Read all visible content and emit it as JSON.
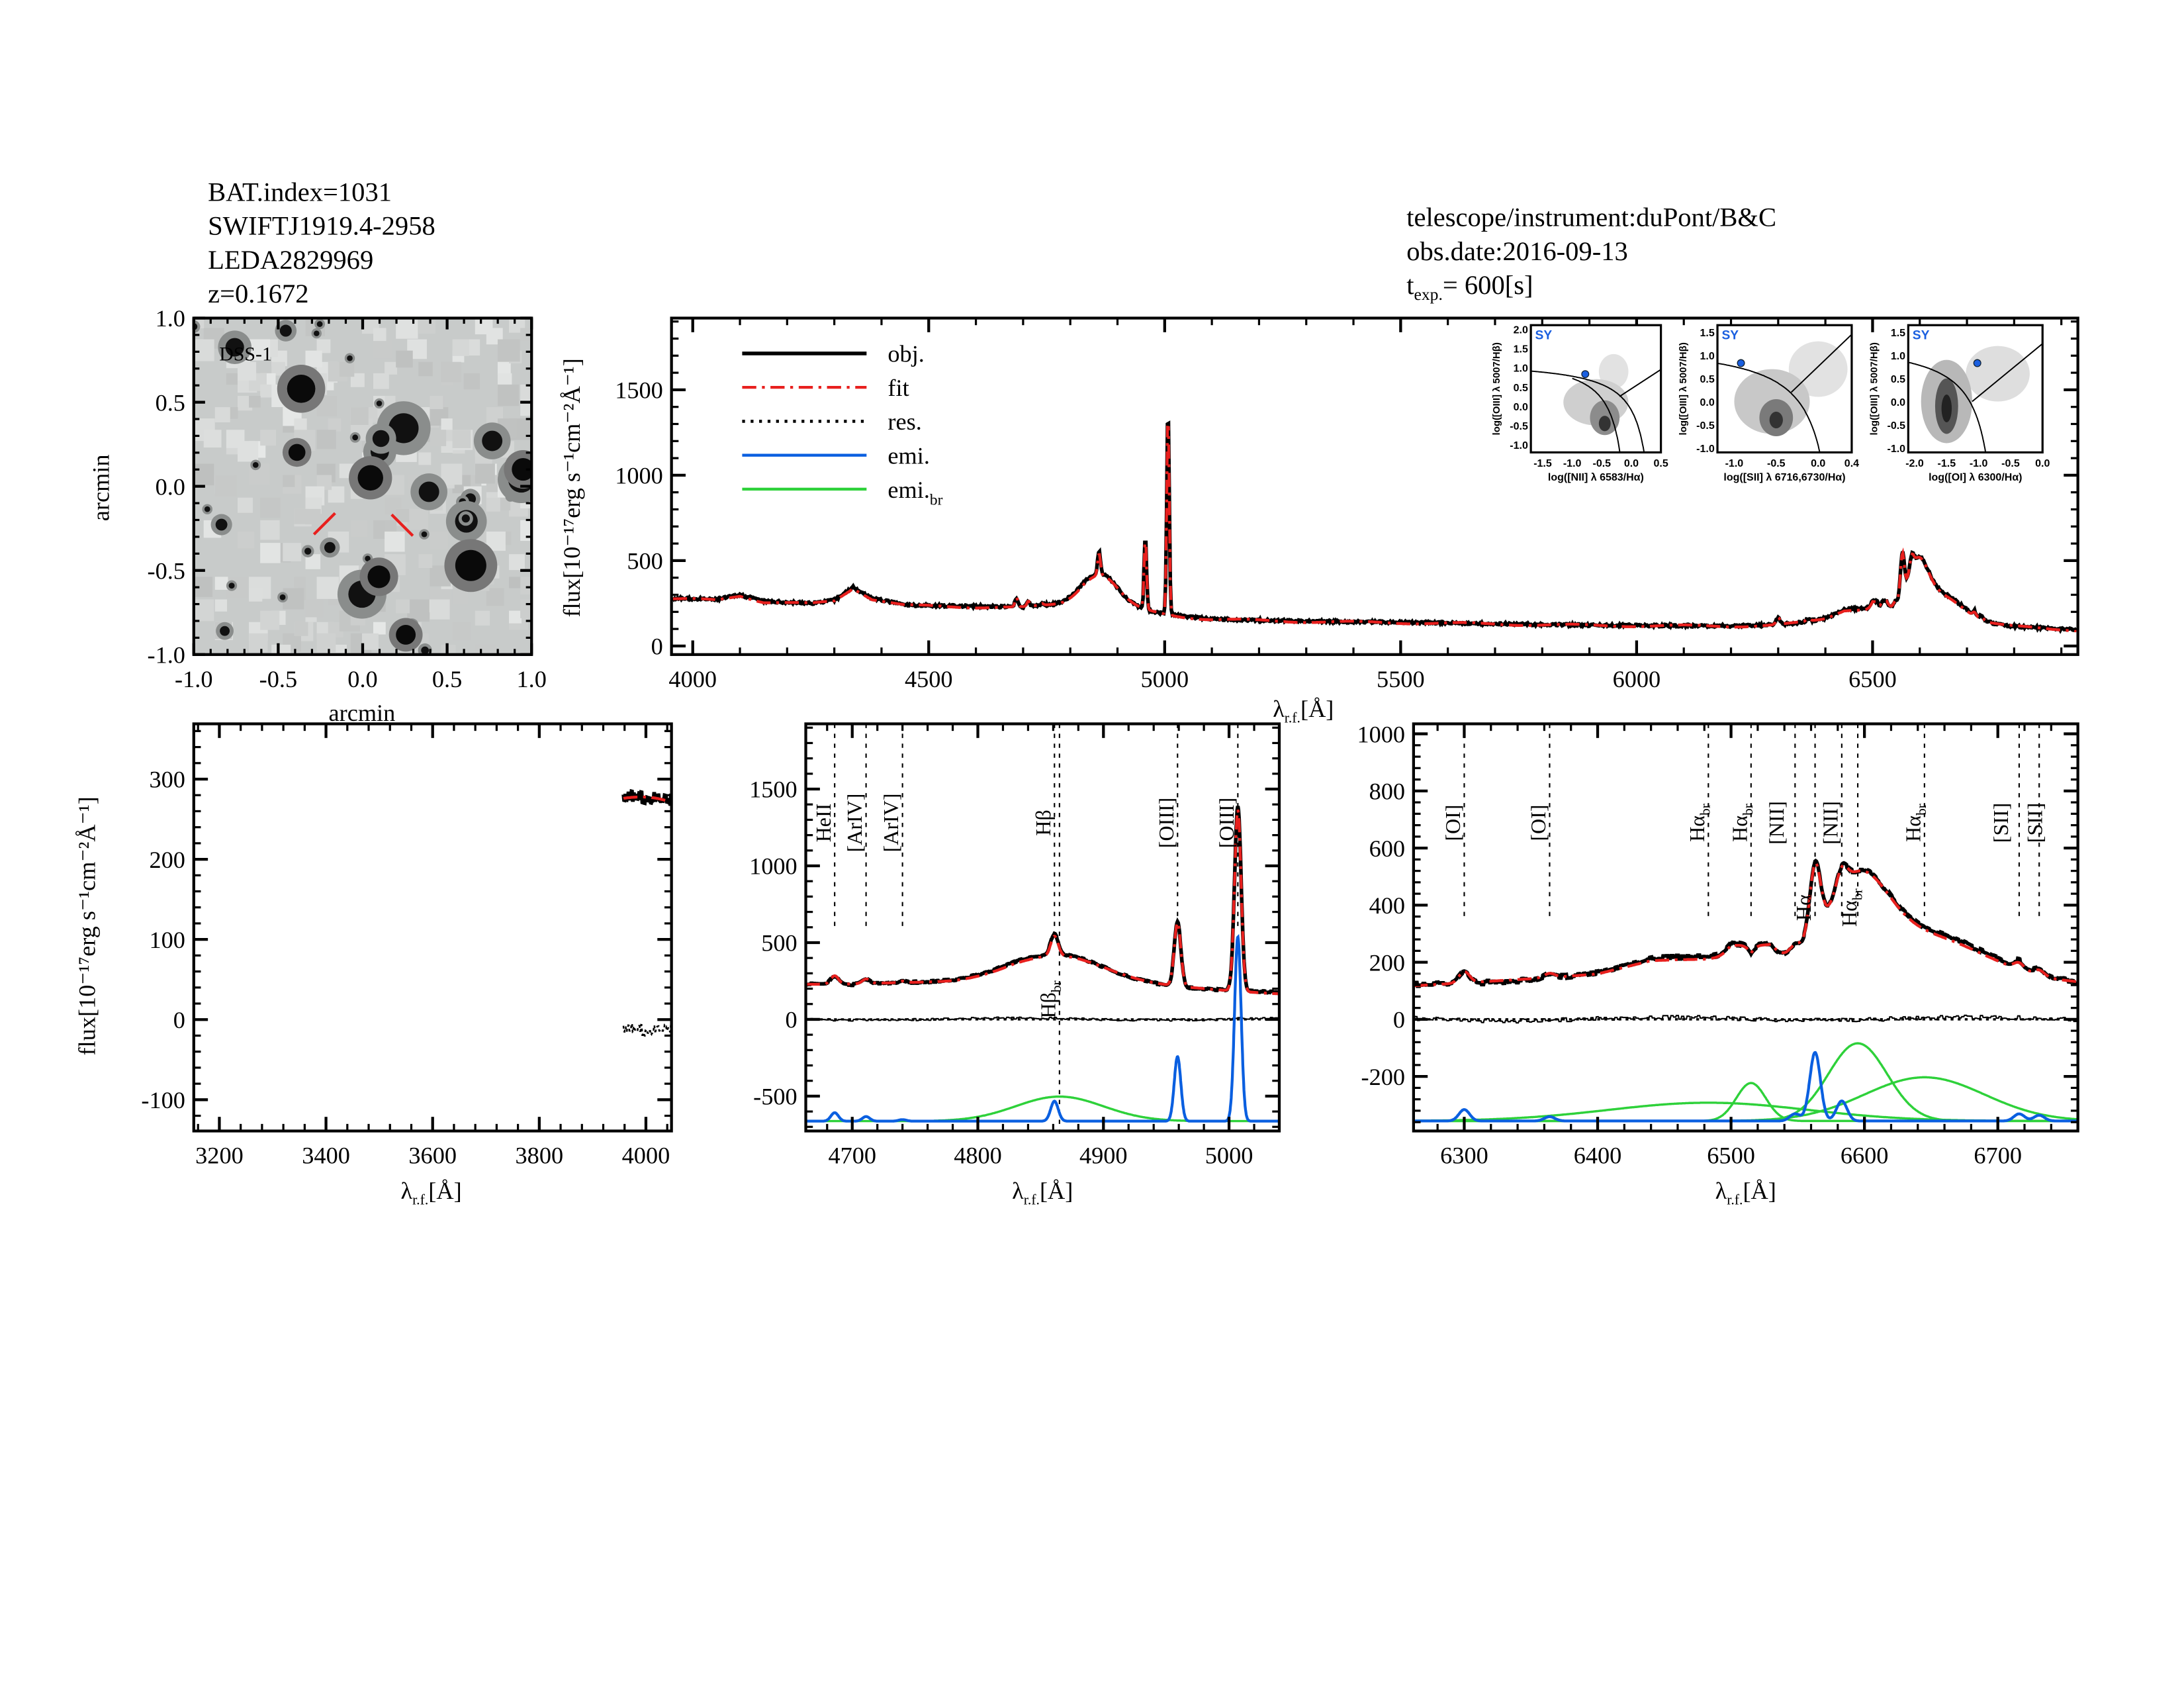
{
  "header_left": [
    "BAT.index=1031",
    "SWIFTJ1919.4-2958",
    "LEDA2829969",
    "z=0.1672"
  ],
  "header_right": {
    "telescope": "telescope/instrument:duPont/B&C",
    "obs_date": "obs.date:2016-09-13",
    "texp_prefix": "t",
    "texp_sub": "exp.",
    "texp_value": "=  600[s]"
  },
  "colors": {
    "obj": "#000000",
    "fit": "#e8201e",
    "res": "#000000",
    "emi": "#0a5fe0",
    "emi_br": "#2ed13a",
    "sy": "#1a5fe0"
  },
  "chart_data": [
    {
      "id": "dss",
      "type": "image",
      "label": "DSS-1",
      "xlabel": "arcmin",
      "ylabel": "arcmin",
      "xlim": [
        -1.0,
        1.0
      ],
      "ylim": [
        -1.0,
        1.0
      ],
      "xticks": [
        "-1.0",
        "-0.5",
        "0.0",
        "0.5",
        "1.0"
      ],
      "yticks": [
        "-1.0",
        "-0.5",
        "0.0",
        "0.5",
        "1.0"
      ]
    },
    {
      "id": "full",
      "type": "line",
      "xlabel": "λ",
      "xlabel_sub": "r.f.",
      "xlabel_unit": "[Å]",
      "ylabel": "flux[10⁻¹⁷erg s⁻¹cm⁻²Å⁻¹]",
      "xlim": [
        3955,
        6935
      ],
      "ylim": [
        -50,
        1920
      ],
      "xticks": [
        4000,
        4500,
        5000,
        5500,
        6000,
        6500
      ],
      "yticks": [
        0,
        500,
        1000,
        1500
      ],
      "legend": [
        "obj.",
        "fit",
        "res.",
        "emi.",
        "emi.",
        "br"
      ],
      "legend_placement": "top-left"
    },
    {
      "id": "blue",
      "type": "line",
      "xlabel": "λ",
      "xlabel_sub": "r.f.",
      "xlabel_unit": "[Å]",
      "ylabel": "flux[10⁻¹⁷erg s⁻¹cm⁻²Å⁻¹]",
      "xlim": [
        3152,
        4048
      ],
      "ylim": [
        -139,
        369
      ],
      "xticks": [
        3200,
        3400,
        3600,
        3800,
        4000
      ],
      "yticks": [
        -100,
        0,
        100,
        200,
        300
      ]
    },
    {
      "id": "hb",
      "type": "line",
      "xlabel": "λ",
      "xlabel_sub": "r.f.",
      "xlabel_unit": "[Å]",
      "xlim": [
        4663,
        5040
      ],
      "ylim": [
        -727,
        1925
      ],
      "xticks": [
        4700,
        4800,
        4900,
        5000
      ],
      "yticks": [
        -500,
        0,
        500,
        1000,
        1500
      ],
      "component_offset": -663,
      "lines": [
        {
          "label": "HeII",
          "wave": 4686
        },
        {
          "label": "[ArIV]",
          "wave": 4711
        },
        {
          "label": "[ArIV]",
          "wave": 4740
        },
        {
          "label": "Hβ",
          "wave": 4861
        },
        {
          "label": "Hβ",
          "sub": "br",
          "wave": 4865,
          "low": true
        },
        {
          "label": "[OIII]",
          "wave": 4959
        },
        {
          "label": "[OIII]",
          "wave": 5007
        }
      ]
    },
    {
      "id": "ha",
      "type": "line",
      "xlabel": "λ",
      "xlabel_sub": "r.f.",
      "xlabel_unit": "[Å]",
      "xlim": [
        6262,
        6760
      ],
      "ylim": [
        -391,
        1035
      ],
      "xticks": [
        6300,
        6400,
        6500,
        6600,
        6700
      ],
      "yticks": [
        -200,
        0,
        200,
        400,
        600,
        800,
        1000
      ],
      "component_offset": -356,
      "lines": [
        {
          "label": "[OI]",
          "wave": 6300
        },
        {
          "label": "[OI]",
          "wave": 6364
        },
        {
          "label": "Hα",
          "sub": "br",
          "wave": 6483
        },
        {
          "label": "Hα",
          "sub": "br",
          "wave": 6515
        },
        {
          "label": "[NII]",
          "wave": 6548
        },
        {
          "label": "Hα",
          "wave": 6563
        },
        {
          "label": "[NII]",
          "wave": 6583
        },
        {
          "label": "Hα",
          "sub": "br",
          "wave": 6595
        },
        {
          "label": "Hα",
          "sub": "br",
          "wave": 6645
        },
        {
          "label": "[SII]",
          "wave": 6716
        },
        {
          "label": "[SII]",
          "wave": 6731
        }
      ]
    }
  ],
  "spectrum": {
    "continuum": [
      [
        3950,
        280
      ],
      [
        4050,
        272
      ],
      [
        4100,
        300
      ],
      [
        4150,
        262
      ],
      [
        4250,
        250
      ],
      [
        4300,
        268
      ],
      [
        4340,
        345
      ],
      [
        4380,
        280
      ],
      [
        4450,
        240
      ],
      [
        4600,
        232
      ],
      [
        4700,
        228
      ],
      [
        4780,
        250
      ],
      [
        4830,
        280
      ],
      [
        4900,
        245
      ],
      [
        4950,
        215
      ],
      [
        5000,
        190
      ],
      [
        5050,
        170
      ],
      [
        5100,
        158
      ],
      [
        5300,
        145
      ],
      [
        5600,
        135
      ],
      [
        5900,
        122
      ],
      [
        6200,
        118
      ],
      [
        6400,
        128
      ],
      [
        6440,
        160
      ],
      [
        6500,
        150
      ],
      [
        6515,
        40
      ],
      [
        6530,
        150
      ],
      [
        6700,
        140
      ],
      [
        6800,
        115
      ],
      [
        6935,
        95
      ]
    ],
    "narrow": [
      {
        "name": "HeII",
        "c": 4686,
        "a": 55,
        "s": 3
      },
      {
        "name": "ArIV",
        "c": 4711,
        "a": 30,
        "s": 3
      },
      {
        "name": "ArIV",
        "c": 4740,
        "a": 10,
        "s": 3
      },
      {
        "name": "Hb",
        "c": 4861,
        "a": 130,
        "s": 3
      },
      {
        "name": "OIII",
        "c": 4959,
        "a": 420,
        "s": 2.6
      },
      {
        "name": "OIII",
        "c": 5007,
        "a": 1200,
        "s": 2.6
      },
      {
        "name": "OI",
        "c": 6300,
        "a": 40,
        "s": 4
      },
      {
        "name": "OI",
        "c": 6364,
        "a": 15,
        "s": 4
      },
      {
        "name": "NII",
        "c": 6548,
        "a": 25,
        "s": 4
      },
      {
        "name": "Ha",
        "c": 6563,
        "a": 240,
        "s": 4
      },
      {
        "name": "NII",
        "c": 6583,
        "a": 70,
        "s": 4
      },
      {
        "name": "SII",
        "c": 6716,
        "a": 25,
        "s": 4
      },
      {
        "name": "SII",
        "c": 6731,
        "a": 20,
        "s": 4
      }
    ],
    "broad": [
      {
        "name": "Hb_br",
        "c": 4865,
        "a": 160,
        "s": 35
      },
      {
        "name": "Ha_br",
        "c": 6483,
        "a": 64,
        "s": 75
      },
      {
        "name": "Ha_br",
        "c": 6515,
        "a": 133,
        "s": 11
      },
      {
        "name": "Ha_br",
        "c": 6595,
        "a": 272,
        "s": 22
      },
      {
        "name": "Ha_br",
        "c": 6645,
        "a": 153,
        "s": 45
      }
    ]
  },
  "bpt": [
    {
      "xlabel": "log([NII] λ 6583/Hα)",
      "ylabel": "log([OIII] λ 5007/Hβ)",
      "xlim": [
        -1.7,
        0.5
      ],
      "ylim": [
        -1.2,
        2.1
      ],
      "xticks": [
        "-1.5",
        "-1.0",
        "-0.5",
        "0.0",
        "0.5"
      ],
      "xtickv": [
        -1.5,
        -1.0,
        -0.5,
        0.0,
        0.5
      ],
      "yticks": [
        "-1.0",
        "-0.5",
        "0.0",
        "0.5",
        "1.0",
        "1.5",
        "2.0"
      ],
      "ytickv": [
        -1.0,
        -0.5,
        0.0,
        0.5,
        1.0,
        1.5,
        2.0
      ],
      "class": "SY",
      "point": [
        -0.78,
        0.83
      ]
    },
    {
      "xlabel": "log([SII] λ 6716,6730/Hα)",
      "ylabel": "log([OIII] λ 5007/Hβ)",
      "xlim": [
        -1.2,
        0.4
      ],
      "ylim": [
        -1.1,
        1.65
      ],
      "xticks": [
        "-1.0",
        "-0.5",
        "0.0",
        "0.4"
      ],
      "xtickv": [
        -1.0,
        -0.5,
        0.0,
        0.4
      ],
      "yticks": [
        "-1.0",
        "-0.5",
        "0.0",
        "0.5",
        "1.0",
        "1.5"
      ],
      "ytickv": [
        -1.0,
        -0.5,
        0.0,
        0.5,
        1.0,
        1.5
      ],
      "class": "SY",
      "point": [
        -0.92,
        0.83
      ]
    },
    {
      "xlabel": "log([OI] λ 6300/Hα)",
      "ylabel": "log([OIII] λ 5007/Hβ)",
      "xlim": [
        -2.1,
        0.0
      ],
      "ylim": [
        -1.1,
        1.65
      ],
      "xticks": [
        "-2.0",
        "-1.5",
        "-1.0",
        "-0.5",
        "0.0"
      ],
      "xtickv": [
        -2.0,
        -1.5,
        -1.0,
        -0.5,
        0.0
      ],
      "yticks": [
        "-1.0",
        "-0.5",
        "0.0",
        "0.5",
        "1.0",
        "1.5"
      ],
      "ytickv": [
        -1.0,
        -0.5,
        0.0,
        0.5,
        1.0,
        1.5
      ],
      "class": "SY",
      "point": [
        -1.02,
        0.83
      ]
    }
  ]
}
